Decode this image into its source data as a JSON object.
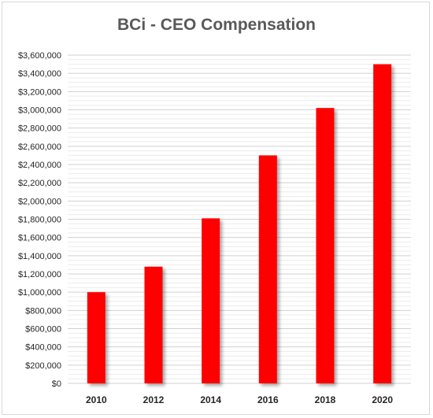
{
  "chart_data": {
    "type": "bar",
    "title": "BCi - CEO Compensation",
    "xlabel": "",
    "ylabel": "",
    "categories": [
      "2010",
      "2012",
      "2014",
      "2016",
      "2018",
      "2020"
    ],
    "values": [
      1000000,
      1280000,
      1810000,
      2500000,
      3020000,
      3500000
    ],
    "ylim": [
      0,
      3600000
    ],
    "y_ticks": [
      "$0",
      "$200,000",
      "$400,000",
      "$600,000",
      "$800,000",
      "$1,000,000",
      "$1,200,000",
      "$1,400,000",
      "$1,600,000",
      "$1,800,000",
      "$2,000,000",
      "$2,200,000",
      "$2,400,000",
      "$2,600,000",
      "$2,800,000",
      "$3,000,000",
      "$3,200,000",
      "$3,400,000",
      "$3,600,000"
    ],
    "grid": true,
    "legend": "none",
    "bar_color": "#ff0000"
  }
}
